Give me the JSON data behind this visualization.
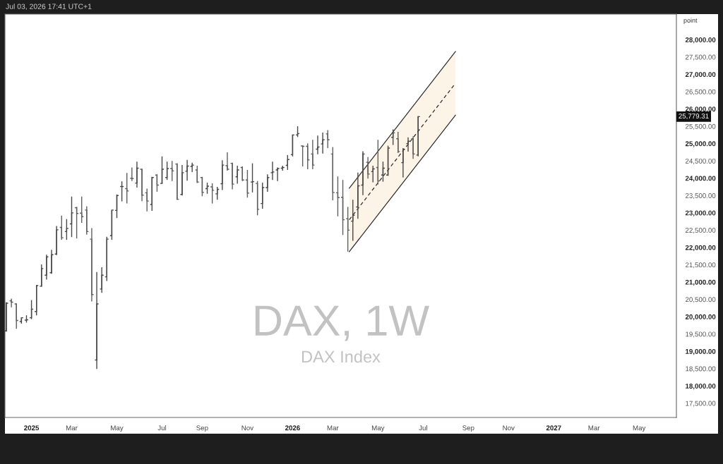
{
  "chart_data": {
    "type": "candlestick",
    "title": "DAX, 1W",
    "subtitle": "DAX Index",
    "ylabel": "point",
    "annotations": [
      "Jul 03, 2026 17:41 UTC+1",
      "25,779.31"
    ],
    "x": [
      "2024-12-02",
      "2024-12-09",
      "2024-12-16",
      "2024-12-23",
      "2024-12-30",
      "2025-01-06",
      "2025-01-13",
      "2025-01-20",
      "2025-01-27",
      "2025-02-03",
      "2025-02-10",
      "2025-02-17",
      "2025-02-24",
      "2025-03-03",
      "2025-03-10",
      "2025-03-17",
      "2025-03-24",
      "2025-03-31",
      "2025-04-07",
      "2025-04-14",
      "2025-04-21",
      "2025-04-28",
      "2025-05-05",
      "2025-05-12",
      "2025-05-19",
      "2025-05-26",
      "2025-06-02",
      "2025-06-09",
      "2025-06-16",
      "2025-06-23",
      "2025-06-30",
      "2025-07-07",
      "2025-07-14",
      "2025-07-21",
      "2025-07-28",
      "2025-08-04",
      "2025-08-11",
      "2025-08-18",
      "2025-08-25",
      "2025-09-01",
      "2025-09-08",
      "2025-09-15",
      "2025-09-22",
      "2025-09-29",
      "2025-10-06",
      "2025-10-13",
      "2025-10-20",
      "2025-10-27",
      "2025-11-03",
      "2025-11-10",
      "2025-11-17",
      "2025-11-24",
      "2025-12-01",
      "2025-12-08",
      "2025-12-15",
      "2025-12-22",
      "2025-12-29",
      "2026-01-05",
      "2026-01-12",
      "2026-01-19",
      "2026-01-26",
      "2026-02-02",
      "2026-02-09",
      "2026-02-16",
      "2026-02-23",
      "2026-03-02",
      "2026-03-09",
      "2026-03-16",
      "2026-03-23",
      "2026-03-30",
      "2026-04-06",
      "2026-04-13",
      "2026-04-20",
      "2026-04-27",
      "2026-05-04",
      "2026-05-11",
      "2026-05-18",
      "2026-05-25",
      "2026-06-01",
      "2026-06-08",
      "2026-06-15",
      "2026-06-22",
      "2026-06-29"
    ],
    "ohlc": [
      [
        19590,
        20420,
        19570,
        20390
      ],
      [
        20460,
        20520,
        20270,
        20420
      ],
      [
        20370,
        20380,
        19650,
        19890
      ],
      [
        19860,
        19980,
        19800,
        19970
      ],
      [
        19900,
        20040,
        19830,
        19910
      ],
      [
        19970,
        20480,
        19930,
        20220
      ],
      [
        20150,
        20910,
        20040,
        20900
      ],
      [
        20880,
        21510,
        20870,
        21390
      ],
      [
        21200,
        21790,
        21070,
        21730
      ],
      [
        21270,
        21930,
        21240,
        21790
      ],
      [
        21810,
        22620,
        21780,
        22510
      ],
      [
        22580,
        22920,
        22220,
        22280
      ],
      [
        22460,
        22820,
        22220,
        22550
      ],
      [
        22680,
        23470,
        22300,
        23000
      ],
      [
        23150,
        23170,
        22260,
        22980
      ],
      [
        22990,
        23470,
        22710,
        22890
      ],
      [
        23080,
        23190,
        22370,
        22460
      ],
      [
        22240,
        22560,
        20440,
        20640
      ],
      [
        18750,
        21290,
        18490,
        20370
      ],
      [
        20800,
        21430,
        20690,
        21200
      ],
      [
        21150,
        22310,
        21030,
        22240
      ],
      [
        22340,
        23080,
        22220,
        23080
      ],
      [
        23070,
        23530,
        22850,
        23500
      ],
      [
        23760,
        23910,
        23330,
        23760
      ],
      [
        23700,
        24150,
        23270,
        23630
      ],
      [
        24000,
        24310,
        23920,
        23990
      ],
      [
        23860,
        24480,
        23730,
        24290
      ],
      [
        24260,
        24270,
        23340,
        23510
      ],
      [
        23580,
        23700,
        23040,
        23340
      ],
      [
        23240,
        24040,
        23060,
        24020
      ],
      [
        24090,
        24110,
        23610,
        23800
      ],
      [
        23850,
        24630,
        23840,
        24260
      ],
      [
        24020,
        24480,
        23950,
        24280
      ],
      [
        24280,
        24500,
        23920,
        24210
      ],
      [
        24410,
        24430,
        23380,
        23390
      ],
      [
        23530,
        24380,
        23500,
        24160
      ],
      [
        24200,
        24530,
        23930,
        24350
      ],
      [
        24340,
        24450,
        24180,
        24380
      ],
      [
        24240,
        24360,
        23860,
        23890
      ],
      [
        24020,
        24040,
        23480,
        23590
      ],
      [
        23700,
        23870,
        23550,
        23770
      ],
      [
        23750,
        23850,
        23270,
        23650
      ],
      [
        23550,
        23750,
        23380,
        23680
      ],
      [
        23840,
        24520,
        23660,
        24380
      ],
      [
        24360,
        24750,
        24220,
        24260
      ],
      [
        24430,
        24450,
        23680,
        23830
      ],
      [
        24040,
        24360,
        23840,
        24240
      ],
      [
        24310,
        24340,
        23920,
        23950
      ],
      [
        23950,
        24240,
        23440,
        23570
      ],
      [
        23890,
        24430,
        23590,
        23900
      ],
      [
        23850,
        23920,
        22930,
        23100
      ],
      [
        23270,
        23870,
        23120,
        23730
      ],
      [
        23730,
        24110,
        23610,
        24020
      ],
      [
        24160,
        24480,
        23950,
        24180
      ],
      [
        24240,
        24310,
        23920,
        24280
      ],
      [
        24290,
        24360,
        24220,
        24310
      ],
      [
        24370,
        24670,
        24240,
        24540
      ],
      [
        24680,
        25260,
        24630,
        25250
      ],
      [
        25250,
        25500,
        25190,
        25290
      ],
      [
        24930,
        24940,
        24340,
        24920
      ],
      [
        24920,
        25010,
        24260,
        24530
      ],
      [
        24700,
        25110,
        24260,
        24380
      ],
      [
        24840,
        25230,
        24690,
        24900
      ],
      [
        24990,
        25320,
        24710,
        25110
      ],
      [
        25280,
        25390,
        24870,
        25110
      ],
      [
        24700,
        24900,
        23360,
        23590
      ],
      [
        23580,
        24050,
        22900,
        23440
      ],
      [
        23450,
        23950,
        22360,
        22800
      ],
      [
        22830,
        23170,
        21880,
        22500
      ],
      [
        22760,
        23380,
        22190,
        22930
      ],
      [
        23170,
        24160,
        22830,
        23780
      ],
      [
        23800,
        24780,
        23510,
        24700
      ],
      [
        24460,
        24610,
        23990,
        24120
      ],
      [
        24190,
        24360,
        23880,
        24270
      ],
      [
        24310,
        25110,
        23820,
        23920
      ],
      [
        24090,
        24480,
        23900,
        24290
      ],
      [
        24090,
        24940,
        24070,
        24870
      ],
      [
        25180,
        25410,
        24960,
        25310
      ],
      [
        25140,
        25340,
        24730,
        24770
      ],
      [
        24450,
        24870,
        24020,
        24830
      ],
      [
        25000,
        25180,
        24770,
        25070
      ],
      [
        25140,
        25210,
        24560,
        24700
      ],
      [
        24670,
        25790,
        24630,
        25779.31
      ]
    ],
    "colors": [
      "#474747",
      "#5e5e5e",
      "#5e5e5e",
      "#474747",
      "#474747",
      "#474747",
      "#474747",
      "#474747",
      "#474747",
      "#474747",
      "#474747",
      "#5e5e5e",
      "#474747",
      "#474747",
      "#5e5e5e",
      "#5e5e5e",
      "#5e5e5e",
      "#5e5e5e",
      "#474747",
      "#474747",
      "#474747",
      "#474747",
      "#474747",
      "#474747",
      "#5e5e5e",
      "#5e5e5e",
      "#474747",
      "#5e5e5e",
      "#5e5e5e",
      "#474747",
      "#5e5e5e",
      "#474747",
      "#474747",
      "#5e5e5e",
      "#5e5e5e",
      "#474747",
      "#474747",
      "#474747",
      "#5e5e5e",
      "#5e5e5e",
      "#474747",
      "#5e5e5e",
      "#474747",
      "#474747",
      "#5e5e5e",
      "#5e5e5e",
      "#474747",
      "#5e5e5e",
      "#5e5e5e",
      "#474747",
      "#5e5e5e",
      "#474747",
      "#474747",
      "#474747",
      "#474747",
      "#474747",
      "#474747",
      "#474747",
      "#474747",
      "#5e5e5e",
      "#5e5e5e",
      "#5e5e5e",
      "#474747",
      "#474747",
      "#5e5e5e",
      "#5e5e5e",
      "#5e5e5e",
      "#5e5e5e",
      "#5e5e5e",
      "#474747",
      "#474747",
      "#474747",
      "#5e5e5e",
      "#474747",
      "#5e5e5e",
      "#474747",
      "#474747",
      "#474747",
      "#5e5e5e",
      "#474747",
      "#474747",
      "#5e5e5e",
      "#474747"
    ],
    "series": [
      {
        "type": "line",
        "x": [
          "2026-03-25",
          "2026-08-20"
        ],
        "values": [
          23710,
          27660
        ],
        "color": "#2e2e2e",
        "line_style": "solid"
      },
      {
        "type": "line",
        "x": [
          "2026-03-25",
          "2026-08-20"
        ],
        "values": [
          22800,
          26740
        ],
        "lower": [
          21880,
          25820
        ],
        "upper": [
          23710,
          27660
        ],
        "color": "#2e2e2e",
        "line_style": "dashed"
      },
      {
        "type": "line",
        "x": [
          "2026-03-25",
          "2026-08-20"
        ],
        "values": [
          21880,
          25820
        ],
        "color": "#2e2e2e",
        "line_style": "solid"
      }
    ],
    "xlim": [
      "2024-11-30",
      "2027-06-24"
    ],
    "xticks": [
      {
        "value": "2025-01-06",
        "label": "2025"
      },
      {
        "value": "2025-03-03",
        "label": "Mar"
      },
      {
        "value": "2025-05-05",
        "label": "May"
      },
      {
        "value": "2025-07-07",
        "label": "Jul"
      },
      {
        "value": "2025-09-01",
        "label": "Sep"
      },
      {
        "value": "2025-11-03",
        "label": "Nov"
      },
      {
        "value": "2026-01-05",
        "label": "2026"
      },
      {
        "value": "2026-03-02",
        "label": "Mar"
      },
      {
        "value": "2026-05-04",
        "label": "May"
      },
      {
        "value": "2026-07-06",
        "label": "Jul"
      },
      {
        "value": "2026-09-07",
        "label": "Sep"
      },
      {
        "value": "2026-11-02",
        "label": "Nov"
      },
      {
        "value": "2027-01-04",
        "label": "2027"
      },
      {
        "value": "2027-03-01",
        "label": "Mar"
      },
      {
        "value": "2027-05-03",
        "label": "May"
      }
    ],
    "ylim": [
      17090,
      28740
    ],
    "yticks": [
      {
        "value": 17500,
        "label": "17,500.00"
      },
      {
        "value": 18000,
        "label": "18,000.00"
      },
      {
        "value": 18500,
        "label": "18,500.00"
      },
      {
        "value": 19000,
        "label": "19,000.00"
      },
      {
        "value": 19500,
        "label": "19,500.00"
      },
      {
        "value": 20000,
        "label": "20,000.00"
      },
      {
        "value": 20500,
        "label": "20,500.00"
      },
      {
        "value": 21000,
        "label": "21,000.00"
      },
      {
        "value": 21500,
        "label": "21,500.00"
      },
      {
        "value": 22000,
        "label": "22,000.00"
      },
      {
        "value": 22500,
        "label": "22,500.00"
      },
      {
        "value": 23000,
        "label": "23,000.00"
      },
      {
        "value": 23500,
        "label": "23,500.00"
      },
      {
        "value": 24000,
        "label": "24,000.00"
      },
      {
        "value": 24500,
        "label": "24,500.00"
      },
      {
        "value": 25000,
        "label": "25,000.00"
      },
      {
        "value": 25500,
        "label": "25,500.00"
      },
      {
        "value": 26000,
        "label": "26,000.00"
      },
      {
        "value": 26500,
        "label": "26,500.00"
      },
      {
        "value": 27000,
        "label": "27,000.00"
      },
      {
        "value": 27500,
        "label": "27,500.00"
      },
      {
        "value": 28000,
        "label": "28,000.00"
      }
    ],
    "grid": false
  }
}
